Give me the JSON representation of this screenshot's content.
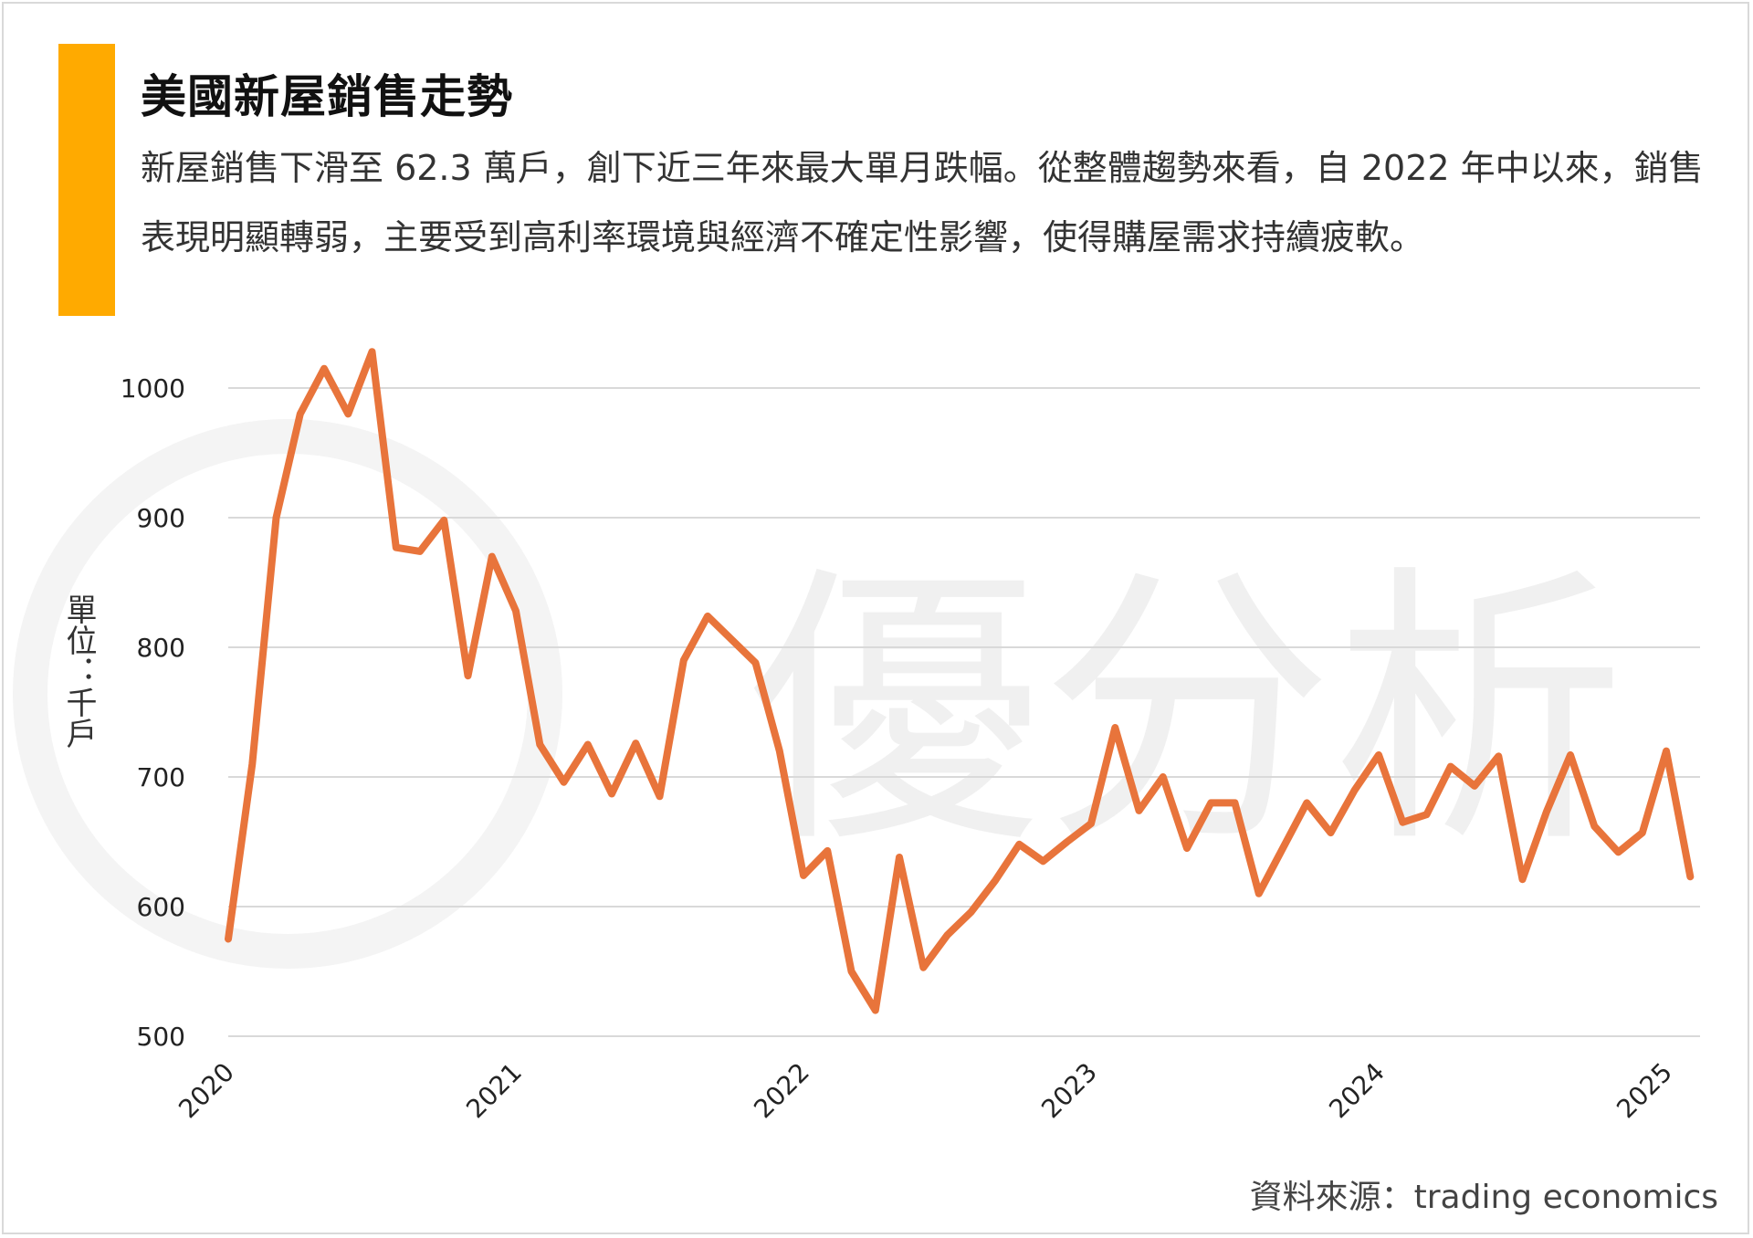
{
  "title": "美國新屋銷售走勢",
  "subtitle": "新屋銷售下滑至 62.3 萬戶，創下近三年來最大單月跌幅。從整體趨勢來看，自 2022 年中以來，銷售表現明顯轉弱，主要受到高利率環境與經濟不確定性影響，使得購屋需求持續疲軟。",
  "ylabel": "單位：千戶",
  "source": "資料來源：trading economics",
  "watermark": "優分析",
  "colors": {
    "line": "#E8743B",
    "accent": "#FFAA00",
    "grid": "#D9D9D9"
  },
  "chart_data": {
    "type": "line",
    "title": "美國新屋銷售走勢",
    "ylabel": "單位：千戶",
    "xlabel": "",
    "ylim": [
      500,
      1000
    ],
    "yticks": [
      500,
      600,
      700,
      800,
      900,
      1000
    ],
    "xtick_labels": [
      "2020",
      "2021",
      "2022",
      "2023",
      "2024",
      "2025"
    ],
    "grid": "horizontal",
    "series": [
      {
        "name": "",
        "values": [
          575,
          710,
          900,
          980,
          1015,
          980,
          1028,
          877,
          874,
          898,
          778,
          870,
          828,
          725,
          696,
          725,
          687,
          726,
          685,
          790,
          824,
          806,
          788,
          720,
          624,
          643,
          550,
          520,
          638,
          553,
          578,
          596,
          620,
          648,
          635,
          650,
          664,
          738,
          674,
          700,
          645,
          680,
          680,
          610,
          645,
          680,
          657,
          690,
          717,
          665,
          671,
          708,
          693,
          716,
          621,
          673,
          717,
          662,
          642,
          657,
          720,
          623
        ]
      }
    ]
  }
}
